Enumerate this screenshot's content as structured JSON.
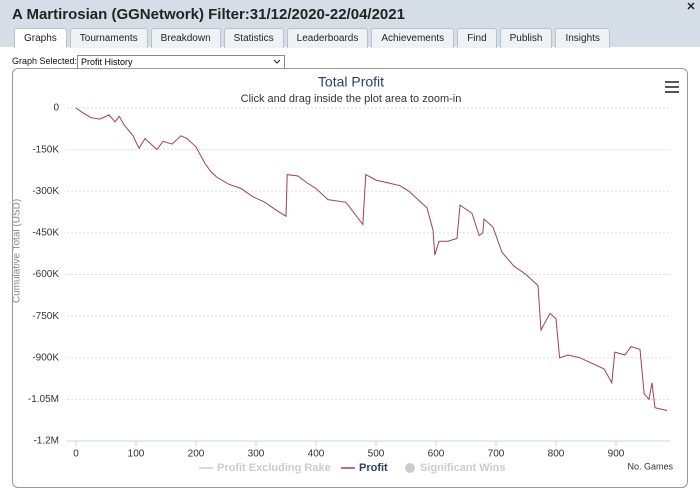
{
  "window": {
    "title": "A Martirosian (GGNetwork) Filter:31/12/2020-22/04/2021"
  },
  "tabs": [
    "Graphs",
    "Tournaments",
    "Breakdown",
    "Statistics",
    "Leaderboards",
    "Achievements",
    "Find",
    "Publish",
    "Insights"
  ],
  "active_tab": "Graphs",
  "graph_selector": {
    "label": "Graph Selected:",
    "value": "Profit History"
  },
  "chart_data": {
    "type": "line",
    "title": "Total Profit",
    "subtitle": "Click and drag inside the plot area to zoom-in",
    "y_label": "Cumulative Total (USD)",
    "x_label": "No. Games",
    "x": [
      0,
      10,
      25,
      40,
      55,
      65,
      72,
      80,
      95,
      105,
      115,
      125,
      135,
      145,
      160,
      175,
      185,
      200,
      215,
      225,
      235,
      255,
      275,
      295,
      315,
      335,
      350,
      352,
      370,
      385,
      400,
      420,
      450,
      478,
      483,
      500,
      520,
      540,
      555,
      570,
      585,
      595,
      598,
      605,
      620,
      635,
      640,
      660,
      672,
      678,
      680,
      695,
      710,
      730,
      750,
      770,
      775,
      790,
      800,
      806,
      820,
      840,
      860,
      880,
      893,
      898,
      915,
      925,
      940,
      947,
      955,
      960,
      965,
      985
    ],
    "series": [
      {
        "name": "Profit",
        "color": "#a0424a",
        "values": [
          0,
          -15000,
          -35000,
          -40000,
          -25000,
          -50000,
          -30000,
          -60000,
          -100000,
          -145000,
          -110000,
          -130000,
          -150000,
          -120000,
          -130000,
          -100000,
          -110000,
          -140000,
          -200000,
          -230000,
          -250000,
          -275000,
          -290000,
          -320000,
          -340000,
          -370000,
          -390000,
          -240000,
          -245000,
          -270000,
          -290000,
          -330000,
          -340000,
          -420000,
          -240000,
          -260000,
          -270000,
          -280000,
          -300000,
          -330000,
          -360000,
          -440000,
          -530000,
          -480000,
          -480000,
          -470000,
          -350000,
          -380000,
          -460000,
          -450000,
          -400000,
          -430000,
          -520000,
          -570000,
          -600000,
          -640000,
          -800000,
          -740000,
          -760000,
          -900000,
          -890000,
          -900000,
          -920000,
          -940000,
          -990000,
          -880000,
          -890000,
          -860000,
          -870000,
          -1030000,
          -1050000,
          -990000,
          -1080000,
          -1090000
        ]
      }
    ],
    "inactive_series": [
      {
        "name": "Profit Excluding Rake",
        "color": "#cccccc"
      },
      {
        "name": "Significant Wins",
        "color": "#cccccc"
      }
    ],
    "xlim": [
      -15,
      990
    ],
    "xticks": [
      0,
      100,
      200,
      300,
      400,
      500,
      600,
      700,
      800,
      900
    ],
    "ylim": [
      -1200000,
      0
    ],
    "yticks": [
      0,
      {
        "value": -150000,
        "label": "-150K"
      },
      {
        "value": -300000,
        "label": "-300K"
      },
      {
        "value": -450000,
        "label": "-450K"
      },
      {
        "value": -600000,
        "label": "-600K"
      },
      {
        "value": -750000,
        "label": "-750K"
      },
      {
        "value": -900000,
        "label": "-900K"
      },
      {
        "value": -1050000,
        "label": "-1.05M"
      },
      {
        "value": -1200000,
        "label": "-1.2M"
      }
    ],
    "grid": true
  }
}
